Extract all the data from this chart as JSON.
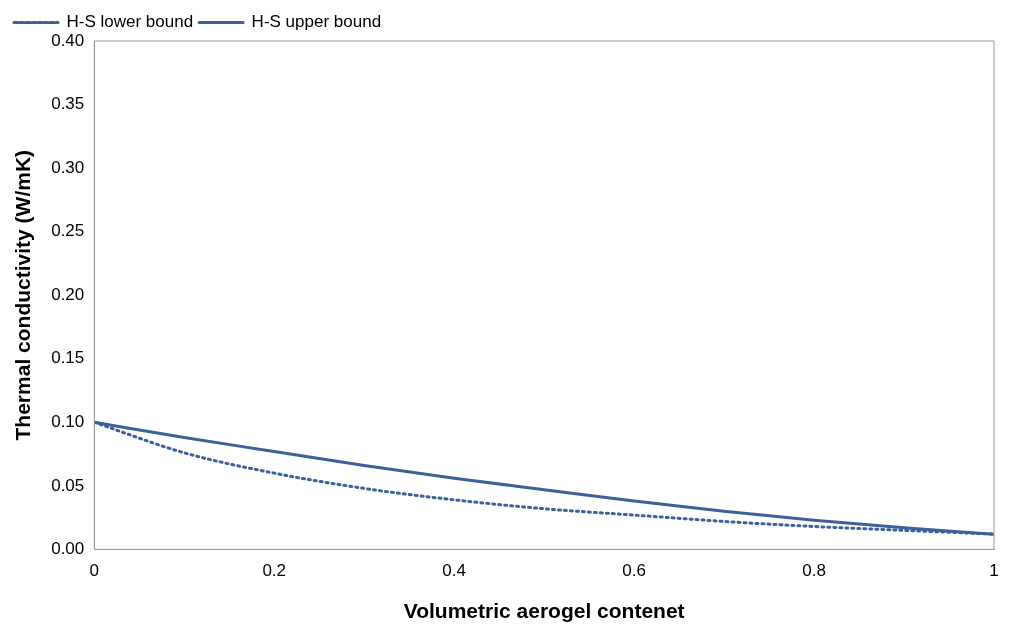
{
  "chart_data": {
    "type": "line",
    "xlabel": "Volumetric aerogel contenet",
    "ylabel": "Thermal conductivity (W/mK)",
    "x": [
      0,
      0.1,
      0.2,
      0.3,
      0.4,
      0.5,
      0.6,
      0.7,
      0.8,
      0.9,
      1
    ],
    "series": [
      {
        "name": "H-S lower bound",
        "color": "#3b6298",
        "line_style": "dotted",
        "values": [
          0.1,
          0.076,
          0.06,
          0.048,
          0.039,
          0.032,
          0.027,
          0.022,
          0.018,
          0.015,
          0.012
        ]
      },
      {
        "name": "H-S upper bound",
        "color": "#3b6298",
        "line_style": "solid",
        "values": [
          0.1,
          0.088,
          0.077,
          0.066,
          0.056,
          0.047,
          0.038,
          0.03,
          0.023,
          0.017,
          0.012
        ]
      }
    ],
    "xlim": [
      0,
      1
    ],
    "xticks": [
      {
        "value": 0,
        "label": "0"
      },
      0.2,
      0.4,
      0.6,
      0.8,
      {
        "value": 1,
        "label": "1"
      }
    ],
    "ylim": [
      0,
      0.4
    ],
    "yticks": [
      {
        "value": 0,
        "label": "0.00"
      },
      {
        "value": 0.05,
        "label": "0.05"
      },
      {
        "value": 0.1,
        "label": "0.10"
      },
      {
        "value": 0.15,
        "label": "0.15"
      },
      {
        "value": 0.2,
        "label": "0.20"
      },
      {
        "value": 0.25,
        "label": "0.25"
      },
      {
        "value": 0.3,
        "label": "0.30"
      },
      {
        "value": 0.35,
        "label": "0.35"
      },
      {
        "value": 0.4,
        "label": "0.40"
      }
    ],
    "grid": false,
    "legend": "top left",
    "marker": "none"
  }
}
